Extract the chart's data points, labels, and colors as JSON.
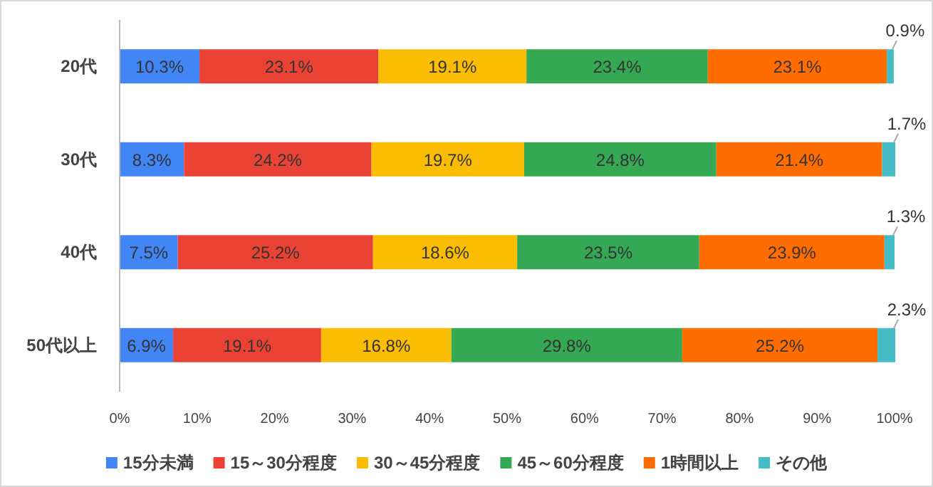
{
  "chart_data": {
    "type": "bar",
    "orientation": "horizontal",
    "stacked": true,
    "categories": [
      "20代",
      "30代",
      "40代",
      "50代以上"
    ],
    "xlim": [
      0,
      100
    ],
    "xticks": [
      {
        "value": 0,
        "label": "0%"
      },
      {
        "value": 10,
        "label": "10%"
      },
      {
        "value": 20,
        "label": "20%"
      },
      {
        "value": 30,
        "label": "30%"
      },
      {
        "value": 40,
        "label": "40%"
      },
      {
        "value": 50,
        "label": "50%"
      },
      {
        "value": 60,
        "label": "60%"
      },
      {
        "value": 70,
        "label": "70%"
      },
      {
        "value": 80,
        "label": "80%"
      },
      {
        "value": 90,
        "label": "90%"
      },
      {
        "value": 100,
        "label": "100%"
      }
    ],
    "grid": false,
    "legend": "bottom",
    "series": [
      {
        "name": "15分未満",
        "color": "#4285f4",
        "values": [
          10.3,
          8.3,
          7.5,
          6.9
        ],
        "value_labels": [
          "10.3%",
          "8.3%",
          "7.5%",
          "6.9%"
        ]
      },
      {
        "name": "15～30分程度",
        "color": "#ea4335",
        "values": [
          23.1,
          24.2,
          25.2,
          19.1
        ],
        "value_labels": [
          "23.1%",
          "24.2%",
          "25.2%",
          "19.1%"
        ]
      },
      {
        "name": "30～45分程度",
        "color": "#fbbc04",
        "values": [
          19.1,
          19.7,
          18.6,
          16.8
        ],
        "value_labels": [
          "19.1%",
          "19.7%",
          "18.6%",
          "16.8%"
        ]
      },
      {
        "name": "45～60分程度",
        "color": "#34a853",
        "values": [
          23.4,
          24.8,
          23.5,
          29.8
        ],
        "value_labels": [
          "23.4%",
          "24.8%",
          "23.5%",
          "29.8%"
        ]
      },
      {
        "name": "1時間以上",
        "color": "#ff6d01",
        "values": [
          23.1,
          21.4,
          23.9,
          25.2
        ],
        "value_labels": [
          "23.1%",
          "21.4%",
          "23.9%",
          "25.2%"
        ]
      },
      {
        "name": "その他",
        "color": "#46bdc6",
        "values": [
          0.9,
          1.7,
          1.3,
          2.3
        ],
        "value_labels": [
          "0.9%",
          "1.7%",
          "1.3%",
          "2.3%"
        ]
      }
    ]
  }
}
